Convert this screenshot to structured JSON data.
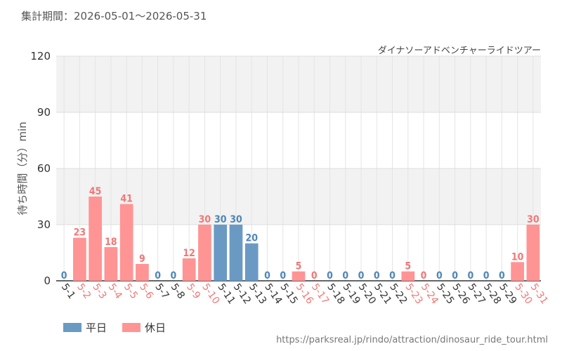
{
  "header": {
    "period_label": "集計期間：",
    "period_start": "2026-05-01",
    "period_sep": "〜",
    "period_end": "2026-05-31"
  },
  "chart_data": {
    "type": "bar",
    "title": "ダイナソーアドベンチャーライドツアー",
    "ylabel": "待ち時間（分）min",
    "xlabel": "",
    "ylim": [
      0,
      120
    ],
    "yticks": [
      0,
      30,
      60,
      90,
      120
    ],
    "grid": true,
    "legend_position": "bottom-left",
    "categories": [
      "5-1",
      "5-2",
      "5-3",
      "5-4",
      "5-5",
      "5-6",
      "5-7",
      "5-8",
      "5-9",
      "5-10",
      "5-11",
      "5-12",
      "5-13",
      "5-14",
      "5-15",
      "5-16",
      "5-17",
      "5-18",
      "5-19",
      "5-20",
      "5-21",
      "5-22",
      "5-23",
      "5-24",
      "5-25",
      "5-26",
      "5-27",
      "5-28",
      "5-29",
      "5-30",
      "5-31"
    ],
    "values": [
      0,
      23,
      45,
      18,
      41,
      9,
      0,
      0,
      12,
      30,
      30,
      30,
      20,
      0,
      0,
      5,
      0,
      0,
      0,
      0,
      0,
      0,
      5,
      0,
      0,
      0,
      0,
      0,
      0,
      10,
      30
    ],
    "day_type": [
      "weekday",
      "holiday",
      "holiday",
      "holiday",
      "holiday",
      "holiday",
      "weekday",
      "weekday",
      "holiday",
      "holiday",
      "weekday",
      "weekday",
      "weekday",
      "weekday",
      "weekday",
      "holiday",
      "holiday",
      "weekday",
      "weekday",
      "weekday",
      "weekday",
      "weekday",
      "holiday",
      "holiday",
      "weekday",
      "weekday",
      "weekday",
      "weekday",
      "weekday",
      "holiday",
      "holiday"
    ],
    "series": [
      {
        "key": "weekday",
        "name": "平日",
        "color": "#6a9ac4",
        "label_color": "#4f86b8"
      },
      {
        "key": "holiday",
        "name": "休日",
        "color": "#ff9494",
        "label_color": "#f07878"
      }
    ]
  },
  "footer": {
    "url": "https://parksreal.jp/rindo/attraction/dinosaur_ride_tour.html"
  }
}
